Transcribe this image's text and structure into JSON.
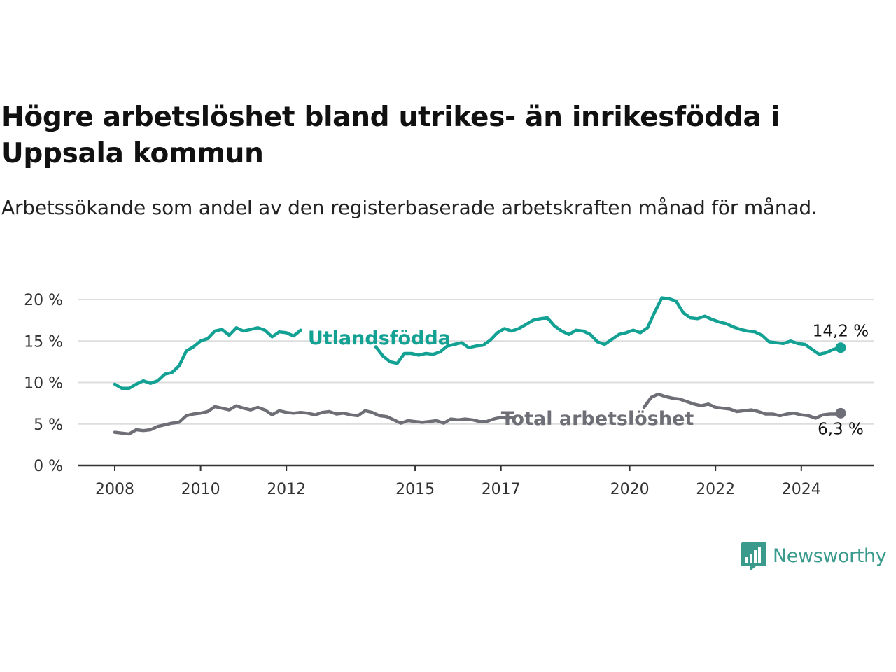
{
  "title": "Högre arbetslöshet bland utrikes- än inrikesfödda i Uppsala kommun",
  "subtitle": "Arbetssökande som andel av den registerbaserade arbetskraften månad för månad.",
  "brand": {
    "name": "Newsworthy",
    "icon": "newsworthy-logo-icon"
  },
  "colors": {
    "foreign_born": "#13a193",
    "total": "#6e6e76",
    "grid": "#dddddd",
    "axis": "#333333",
    "brand": "#3a9a8c"
  },
  "chart_data": {
    "type": "line",
    "title": "Högre arbetslöshet bland utrikes- än inrikesfödda i Uppsala kommun",
    "subtitle": "Arbetssökande som andel av den registerbaserade arbetskraften månad för månad.",
    "xlabel": "",
    "ylabel": "",
    "x_ticks": [
      "2008",
      "2010",
      "2012",
      "2015",
      "2017",
      "2020",
      "2022",
      "2024"
    ],
    "y_ticks": [
      "0 %",
      "5 %",
      "10 %",
      "15 %",
      "20 %"
    ],
    "ylim": [
      0,
      20
    ],
    "grid": true,
    "series": [
      {
        "name": "Utlandsfödda",
        "color": "#13a193",
        "end_label": "14,2 %",
        "segments": [
          [
            [
              "2008-01",
              9.8
            ],
            [
              "2008-03",
              9.3
            ],
            [
              "2008-05",
              9.3
            ],
            [
              "2008-07",
              9.8
            ],
            [
              "2008-09",
              10.2
            ],
            [
              "2008-11",
              9.9
            ],
            [
              "2009-01",
              10.2
            ],
            [
              "2009-03",
              11.0
            ],
            [
              "2009-05",
              11.2
            ],
            [
              "2009-07",
              12.0
            ],
            [
              "2009-09",
              13.8
            ],
            [
              "2009-11",
              14.3
            ],
            [
              "2010-01",
              15.0
            ],
            [
              "2010-03",
              15.3
            ],
            [
              "2010-05",
              16.2
            ],
            [
              "2010-07",
              16.4
            ],
            [
              "2010-09",
              15.7
            ],
            [
              "2010-11",
              16.6
            ],
            [
              "2011-01",
              16.2
            ],
            [
              "2011-03",
              16.4
            ],
            [
              "2011-05",
              16.6
            ],
            [
              "2011-07",
              16.3
            ],
            [
              "2011-09",
              15.5
            ],
            [
              "2011-11",
              16.1
            ],
            [
              "2012-01",
              16.0
            ],
            [
              "2012-03",
              15.6
            ],
            [
              "2012-05",
              16.3
            ]
          ],
          [
            [
              "2014-02",
              14.3
            ],
            [
              "2014-04",
              13.2
            ],
            [
              "2014-06",
              12.5
            ],
            [
              "2014-08",
              12.3
            ],
            [
              "2014-10",
              13.5
            ],
            [
              "2014-12",
              13.5
            ],
            [
              "2015-02",
              13.3
            ],
            [
              "2015-04",
              13.5
            ],
            [
              "2015-06",
              13.4
            ],
            [
              "2015-08",
              13.7
            ],
            [
              "2015-10",
              14.4
            ],
            [
              "2015-12",
              14.6
            ],
            [
              "2016-02",
              14.8
            ],
            [
              "2016-04",
              14.2
            ],
            [
              "2016-06",
              14.4
            ],
            [
              "2016-08",
              14.5
            ],
            [
              "2016-10",
              15.1
            ],
            [
              "2016-12",
              16.0
            ],
            [
              "2017-02",
              16.5
            ],
            [
              "2017-04",
              16.2
            ],
            [
              "2017-06",
              16.5
            ],
            [
              "2017-08",
              17.0
            ],
            [
              "2017-10",
              17.5
            ],
            [
              "2017-12",
              17.7
            ],
            [
              "2018-02",
              17.8
            ],
            [
              "2018-04",
              16.8
            ],
            [
              "2018-06",
              16.2
            ],
            [
              "2018-08",
              15.8
            ],
            [
              "2018-10",
              16.3
            ],
            [
              "2018-12",
              16.2
            ],
            [
              "2019-02",
              15.8
            ],
            [
              "2019-04",
              14.9
            ],
            [
              "2019-06",
              14.6
            ],
            [
              "2019-08",
              15.2
            ],
            [
              "2019-10",
              15.8
            ],
            [
              "2019-12",
              16.0
            ],
            [
              "2020-02",
              16.3
            ],
            [
              "2020-04",
              16.0
            ],
            [
              "2020-06",
              16.6
            ],
            [
              "2020-08",
              18.5
            ],
            [
              "2020-10",
              20.2
            ],
            [
              "2020-12",
              20.1
            ],
            [
              "2021-02",
              19.8
            ],
            [
              "2021-04",
              18.4
            ],
            [
              "2021-06",
              17.8
            ],
            [
              "2021-08",
              17.7
            ],
            [
              "2021-10",
              18.0
            ],
            [
              "2021-12",
              17.6
            ],
            [
              "2022-02",
              17.3
            ],
            [
              "2022-04",
              17.1
            ],
            [
              "2022-06",
              16.7
            ],
            [
              "2022-08",
              16.4
            ],
            [
              "2022-10",
              16.2
            ],
            [
              "2022-12",
              16.1
            ],
            [
              "2023-02",
              15.7
            ],
            [
              "2023-04",
              14.9
            ],
            [
              "2023-06",
              14.8
            ],
            [
              "2023-08",
              14.7
            ],
            [
              "2023-10",
              15.0
            ],
            [
              "2023-12",
              14.7
            ],
            [
              "2024-02",
              14.6
            ],
            [
              "2024-04",
              14.0
            ],
            [
              "2024-06",
              13.4
            ],
            [
              "2024-08",
              13.6
            ],
            [
              "2024-10",
              14.0
            ],
            [
              "2024-12",
              14.2
            ]
          ]
        ]
      },
      {
        "name": "Total arbetslöshet",
        "color": "#6e6e76",
        "end_label": "6,3 %",
        "segments": [
          [
            [
              "2008-01",
              4.0
            ],
            [
              "2008-03",
              3.9
            ],
            [
              "2008-05",
              3.8
            ],
            [
              "2008-07",
              4.3
            ],
            [
              "2008-09",
              4.2
            ],
            [
              "2008-11",
              4.3
            ],
            [
              "2009-01",
              4.7
            ],
            [
              "2009-03",
              4.9
            ],
            [
              "2009-05",
              5.1
            ],
            [
              "2009-07",
              5.2
            ],
            [
              "2009-09",
              6.0
            ],
            [
              "2009-11",
              6.2
            ],
            [
              "2010-01",
              6.3
            ],
            [
              "2010-03",
              6.5
            ],
            [
              "2010-05",
              7.1
            ],
            [
              "2010-07",
              6.9
            ],
            [
              "2010-09",
              6.7
            ],
            [
              "2010-11",
              7.2
            ],
            [
              "2011-01",
              6.9
            ],
            [
              "2011-03",
              6.7
            ],
            [
              "2011-05",
              7.0
            ],
            [
              "2011-07",
              6.7
            ],
            [
              "2011-09",
              6.1
            ],
            [
              "2011-11",
              6.6
            ],
            [
              "2012-01",
              6.4
            ],
            [
              "2012-03",
              6.3
            ],
            [
              "2012-05",
              6.4
            ],
            [
              "2012-07",
              6.3
            ],
            [
              "2012-09",
              6.1
            ],
            [
              "2012-11",
              6.4
            ],
            [
              "2013-01",
              6.5
            ],
            [
              "2013-03",
              6.2
            ],
            [
              "2013-05",
              6.3
            ],
            [
              "2013-07",
              6.1
            ],
            [
              "2013-09",
              6.0
            ],
            [
              "2013-11",
              6.6
            ],
            [
              "2014-01",
              6.4
            ],
            [
              "2014-03",
              6.0
            ],
            [
              "2014-05",
              5.9
            ],
            [
              "2014-07",
              5.5
            ],
            [
              "2014-09",
              5.1
            ],
            [
              "2014-11",
              5.4
            ],
            [
              "2015-01",
              5.3
            ],
            [
              "2015-03",
              5.2
            ],
            [
              "2015-05",
              5.3
            ],
            [
              "2015-07",
              5.4
            ],
            [
              "2015-09",
              5.1
            ],
            [
              "2015-11",
              5.6
            ],
            [
              "2016-01",
              5.5
            ],
            [
              "2016-03",
              5.6
            ],
            [
              "2016-05",
              5.5
            ],
            [
              "2016-07",
              5.3
            ],
            [
              "2016-09",
              5.3
            ],
            [
              "2016-11",
              5.6
            ],
            [
              "2017-01",
              5.8
            ],
            [
              "2017-03",
              5.7
            ],
            [
              "2017-04",
              5.8
            ]
          ],
          [
            [
              "2020-05",
              7.0
            ],
            [
              "2020-07",
              8.2
            ],
            [
              "2020-09",
              8.6
            ],
            [
              "2020-11",
              8.3
            ],
            [
              "2021-01",
              8.1
            ],
            [
              "2021-03",
              8.0
            ],
            [
              "2021-05",
              7.7
            ],
            [
              "2021-07",
              7.4
            ],
            [
              "2021-09",
              7.2
            ],
            [
              "2021-11",
              7.4
            ],
            [
              "2022-01",
              7.0
            ],
            [
              "2022-03",
              6.9
            ],
            [
              "2022-05",
              6.8
            ],
            [
              "2022-07",
              6.5
            ],
            [
              "2022-09",
              6.6
            ],
            [
              "2022-11",
              6.7
            ],
            [
              "2023-01",
              6.5
            ],
            [
              "2023-03",
              6.2
            ],
            [
              "2023-05",
              6.2
            ],
            [
              "2023-07",
              6.0
            ],
            [
              "2023-09",
              6.2
            ],
            [
              "2023-11",
              6.3
            ],
            [
              "2024-01",
              6.1
            ],
            [
              "2024-03",
              6.0
            ],
            [
              "2024-05",
              5.7
            ],
            [
              "2024-07",
              6.1
            ],
            [
              "2024-09",
              6.2
            ],
            [
              "2024-11",
              6.2
            ],
            [
              "2024-12",
              6.3
            ]
          ]
        ]
      }
    ]
  }
}
